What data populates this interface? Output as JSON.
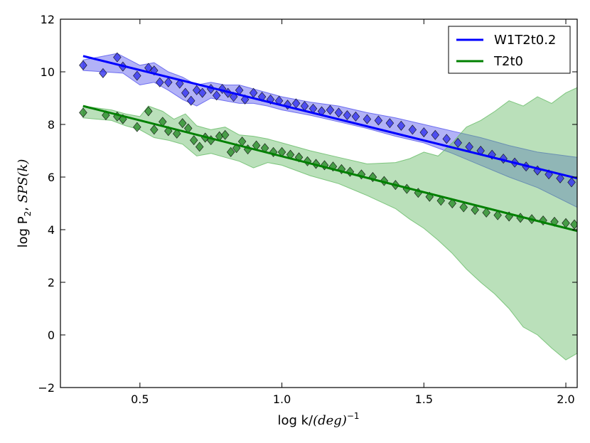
{
  "chart_data": {
    "type": "scatter",
    "title": "",
    "xlabel": {
      "prefix": "log k/",
      "math": "(deg)",
      "sup": "−1"
    },
    "ylabel": {
      "prefix": "log P",
      "sub": "2",
      "mid": ", ",
      "math": "SPS(k)"
    },
    "xlim": [
      0.22,
      2.04
    ],
    "ylim": [
      -2,
      12
    ],
    "xticks": [
      0.5,
      1.0,
      1.5,
      2.0
    ],
    "xtick_labels": [
      "0.5",
      "1.0",
      "1.5",
      "2.0"
    ],
    "yticks": [
      -2,
      0,
      2,
      4,
      6,
      8,
      10,
      12
    ],
    "ytick_labels": [
      "−2",
      "0",
      "2",
      "4",
      "6",
      "8",
      "10",
      "12"
    ],
    "grid": false,
    "legend_position": "top-right",
    "series": [
      {
        "name": "W1T2t0.2",
        "line_color": "#0000ff",
        "marker_color": "#3333ee",
        "band_color": "#5555ee",
        "fit": [
          [
            0.3,
            10.6
          ],
          [
            2.04,
            5.95
          ]
        ],
        "points": [
          [
            0.3,
            10.25
          ],
          [
            0.37,
            9.95
          ],
          [
            0.42,
            10.55
          ],
          [
            0.44,
            10.2
          ],
          [
            0.49,
            9.85
          ],
          [
            0.53,
            10.15
          ],
          [
            0.55,
            10.05
          ],
          [
            0.57,
            9.6
          ],
          [
            0.6,
            9.6
          ],
          [
            0.64,
            9.55
          ],
          [
            0.66,
            9.2
          ],
          [
            0.68,
            8.9
          ],
          [
            0.7,
            9.3
          ],
          [
            0.72,
            9.2
          ],
          [
            0.75,
            9.35
          ],
          [
            0.77,
            9.1
          ],
          [
            0.79,
            9.35
          ],
          [
            0.81,
            9.2
          ],
          [
            0.83,
            9.05
          ],
          [
            0.85,
            9.3
          ],
          [
            0.87,
            8.95
          ],
          [
            0.9,
            9.2
          ],
          [
            0.93,
            9.05
          ],
          [
            0.96,
            8.95
          ],
          [
            0.99,
            8.9
          ],
          [
            1.02,
            8.75
          ],
          [
            1.05,
            8.8
          ],
          [
            1.08,
            8.7
          ],
          [
            1.11,
            8.6
          ],
          [
            1.14,
            8.5
          ],
          [
            1.17,
            8.55
          ],
          [
            1.2,
            8.45
          ],
          [
            1.23,
            8.35
          ],
          [
            1.26,
            8.3
          ],
          [
            1.3,
            8.2
          ],
          [
            1.34,
            8.15
          ],
          [
            1.38,
            8.05
          ],
          [
            1.42,
            7.95
          ],
          [
            1.46,
            7.8
          ],
          [
            1.5,
            7.7
          ],
          [
            1.54,
            7.6
          ],
          [
            1.58,
            7.45
          ],
          [
            1.62,
            7.3
          ],
          [
            1.66,
            7.15
          ],
          [
            1.7,
            7.0
          ],
          [
            1.74,
            6.85
          ],
          [
            1.78,
            6.7
          ],
          [
            1.82,
            6.55
          ],
          [
            1.86,
            6.4
          ],
          [
            1.9,
            6.25
          ],
          [
            1.94,
            6.1
          ],
          [
            1.98,
            5.95
          ],
          [
            2.02,
            5.8
          ]
        ],
        "band_upper": [
          [
            0.3,
            10.45
          ],
          [
            0.42,
            10.7
          ],
          [
            0.5,
            10.25
          ],
          [
            0.55,
            10.35
          ],
          [
            0.6,
            10.0
          ],
          [
            0.65,
            9.8
          ],
          [
            0.7,
            9.5
          ],
          [
            0.75,
            9.6
          ],
          [
            0.8,
            9.5
          ],
          [
            0.85,
            9.5
          ],
          [
            0.9,
            9.35
          ],
          [
            0.95,
            9.2
          ],
          [
            1.0,
            9.05
          ],
          [
            1.1,
            8.85
          ],
          [
            1.2,
            8.7
          ],
          [
            1.3,
            8.45
          ],
          [
            1.4,
            8.25
          ],
          [
            1.5,
            8.0
          ],
          [
            1.6,
            7.75
          ],
          [
            1.7,
            7.5
          ],
          [
            1.8,
            7.2
          ],
          [
            1.9,
            6.95
          ],
          [
            2.04,
            6.75
          ]
        ],
        "band_lower": [
          [
            2.04,
            4.85
          ],
          [
            1.9,
            5.6
          ],
          [
            1.8,
            6.0
          ],
          [
            1.7,
            6.45
          ],
          [
            1.6,
            6.9
          ],
          [
            1.5,
            7.3
          ],
          [
            1.4,
            7.55
          ],
          [
            1.3,
            7.85
          ],
          [
            1.2,
            8.1
          ],
          [
            1.1,
            8.35
          ],
          [
            1.0,
            8.55
          ],
          [
            0.95,
            8.7
          ],
          [
            0.9,
            8.8
          ],
          [
            0.85,
            8.8
          ],
          [
            0.8,
            8.9
          ],
          [
            0.75,
            9.0
          ],
          [
            0.7,
            8.7
          ],
          [
            0.65,
            8.95
          ],
          [
            0.6,
            9.3
          ],
          [
            0.55,
            9.6
          ],
          [
            0.5,
            9.5
          ],
          [
            0.44,
            9.95
          ],
          [
            0.3,
            10.05
          ]
        ]
      },
      {
        "name": "T2t0",
        "line_color": "#008000",
        "marker_color": "#2a8c2a",
        "band_color": "#66bb66",
        "fit": [
          [
            0.3,
            8.7
          ],
          [
            2.04,
            3.95
          ]
        ],
        "points": [
          [
            0.3,
            8.45
          ],
          [
            0.38,
            8.35
          ],
          [
            0.42,
            8.3
          ],
          [
            0.44,
            8.2
          ],
          [
            0.49,
            7.9
          ],
          [
            0.53,
            8.5
          ],
          [
            0.55,
            7.8
          ],
          [
            0.58,
            8.1
          ],
          [
            0.6,
            7.75
          ],
          [
            0.63,
            7.65
          ],
          [
            0.65,
            8.05
          ],
          [
            0.67,
            7.85
          ],
          [
            0.69,
            7.4
          ],
          [
            0.71,
            7.15
          ],
          [
            0.73,
            7.5
          ],
          [
            0.75,
            7.4
          ],
          [
            0.78,
            7.55
          ],
          [
            0.8,
            7.6
          ],
          [
            0.82,
            6.95
          ],
          [
            0.84,
            7.1
          ],
          [
            0.86,
            7.35
          ],
          [
            0.88,
            7.05
          ],
          [
            0.91,
            7.2
          ],
          [
            0.94,
            7.1
          ],
          [
            0.97,
            6.95
          ],
          [
            1.0,
            6.95
          ],
          [
            1.03,
            6.85
          ],
          [
            1.06,
            6.75
          ],
          [
            1.09,
            6.6
          ],
          [
            1.12,
            6.5
          ],
          [
            1.15,
            6.45
          ],
          [
            1.18,
            6.4
          ],
          [
            1.21,
            6.3
          ],
          [
            1.24,
            6.2
          ],
          [
            1.28,
            6.1
          ],
          [
            1.32,
            6.0
          ],
          [
            1.36,
            5.85
          ],
          [
            1.4,
            5.7
          ],
          [
            1.44,
            5.55
          ],
          [
            1.48,
            5.4
          ],
          [
            1.52,
            5.25
          ],
          [
            1.56,
            5.1
          ],
          [
            1.6,
            5.0
          ],
          [
            1.64,
            4.85
          ],
          [
            1.68,
            4.75
          ],
          [
            1.72,
            4.65
          ],
          [
            1.76,
            4.55
          ],
          [
            1.8,
            4.5
          ],
          [
            1.84,
            4.45
          ],
          [
            1.88,
            4.4
          ],
          [
            1.92,
            4.35
          ],
          [
            1.96,
            4.3
          ],
          [
            2.0,
            4.25
          ],
          [
            2.03,
            4.2
          ]
        ],
        "band_upper": [
          [
            0.3,
            8.7
          ],
          [
            0.4,
            8.55
          ],
          [
            0.45,
            8.4
          ],
          [
            0.5,
            8.3
          ],
          [
            0.53,
            8.7
          ],
          [
            0.58,
            8.5
          ],
          [
            0.62,
            8.2
          ],
          [
            0.66,
            8.4
          ],
          [
            0.7,
            7.95
          ],
          [
            0.75,
            7.8
          ],
          [
            0.8,
            7.9
          ],
          [
            0.85,
            7.6
          ],
          [
            0.9,
            7.55
          ],
          [
            0.95,
            7.45
          ],
          [
            1.0,
            7.3
          ],
          [
            1.1,
            7.0
          ],
          [
            1.2,
            6.75
          ],
          [
            1.3,
            6.5
          ],
          [
            1.4,
            6.55
          ],
          [
            1.45,
            6.7
          ],
          [
            1.5,
            6.95
          ],
          [
            1.55,
            6.8
          ],
          [
            1.6,
            7.3
          ],
          [
            1.65,
            7.9
          ],
          [
            1.7,
            8.15
          ],
          [
            1.75,
            8.5
          ],
          [
            1.8,
            8.9
          ],
          [
            1.85,
            8.7
          ],
          [
            1.9,
            9.05
          ],
          [
            1.95,
            8.8
          ],
          [
            2.0,
            9.2
          ],
          [
            2.04,
            9.4
          ]
        ],
        "band_lower": [
          [
            2.04,
            -0.7
          ],
          [
            2.0,
            -0.95
          ],
          [
            1.95,
            -0.5
          ],
          [
            1.9,
            0.0
          ],
          [
            1.85,
            0.3
          ],
          [
            1.8,
            1.0
          ],
          [
            1.75,
            1.55
          ],
          [
            1.7,
            2.0
          ],
          [
            1.65,
            2.5
          ],
          [
            1.6,
            3.1
          ],
          [
            1.55,
            3.6
          ],
          [
            1.5,
            4.05
          ],
          [
            1.45,
            4.4
          ],
          [
            1.4,
            4.8
          ],
          [
            1.3,
            5.3
          ],
          [
            1.2,
            5.75
          ],
          [
            1.1,
            6.05
          ],
          [
            1.0,
            6.45
          ],
          [
            0.95,
            6.55
          ],
          [
            0.9,
            6.35
          ],
          [
            0.85,
            6.6
          ],
          [
            0.8,
            6.75
          ],
          [
            0.75,
            6.9
          ],
          [
            0.7,
            6.8
          ],
          [
            0.65,
            7.25
          ],
          [
            0.6,
            7.4
          ],
          [
            0.55,
            7.5
          ],
          [
            0.5,
            7.8
          ],
          [
            0.45,
            7.95
          ],
          [
            0.4,
            8.15
          ],
          [
            0.3,
            8.25
          ]
        ]
      }
    ]
  }
}
